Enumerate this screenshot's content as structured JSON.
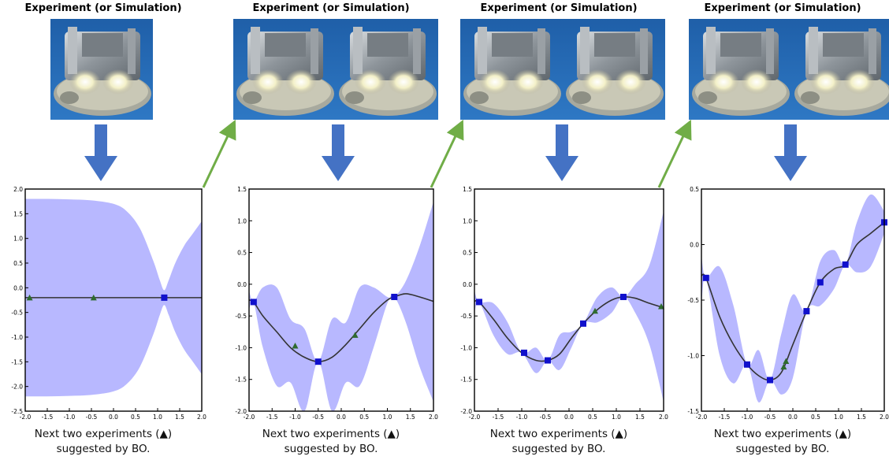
{
  "stages": [
    {
      "heading": "Experiment (or Simulation)",
      "caption_line1": "Next two experiments (▲)",
      "caption_line2": "suggested by BO.",
      "images": 1,
      "chart_data": {
        "type": "line",
        "xlim": [
          -2.0,
          2.0
        ],
        "ylim": [
          -2.5,
          2.0
        ],
        "xticks": [
          "-2.0",
          "-1.5",
          "-1.0",
          "-0.5",
          "0.0",
          "0.5",
          "1.0",
          "1.5",
          "2.0"
        ],
        "yticks": [
          "2.0",
          "1.5",
          "1.0",
          "0.5",
          "0.0",
          "-0.5",
          "-1.0",
          "-1.5",
          "-2.0",
          "-2.5"
        ],
        "mean": {
          "x": [
            -2.0,
            -1.5,
            -1.0,
            -0.5,
            0.0,
            0.5,
            1.0,
            1.5,
            2.0
          ],
          "y": [
            -0.2,
            -0.2,
            -0.2,
            -0.2,
            -0.2,
            -0.2,
            -0.2,
            -0.2,
            -0.2
          ]
        },
        "band": {
          "x": [
            -2.0,
            -1.5,
            -1.0,
            -0.5,
            0.0,
            0.3,
            0.6,
            0.9,
            1.05,
            1.15,
            1.25,
            1.4,
            1.6,
            1.8,
            2.0
          ],
          "upper": [
            1.8,
            1.8,
            1.79,
            1.77,
            1.7,
            1.55,
            1.2,
            0.55,
            0.15,
            -0.05,
            0.15,
            0.5,
            0.85,
            1.1,
            1.35
          ],
          "lower": [
            -2.2,
            -2.2,
            -2.19,
            -2.17,
            -2.1,
            -1.95,
            -1.6,
            -0.95,
            -0.55,
            -0.35,
            -0.55,
            -0.9,
            -1.25,
            -1.5,
            -1.75
          ]
        },
        "observed": {
          "x": [
            1.15
          ],
          "y": [
            -0.2
          ]
        },
        "suggested": {
          "x": [
            -1.9,
            -0.45
          ],
          "y": [
            -0.2,
            -0.2
          ]
        }
      }
    },
    {
      "heading": "Experiment (or Simulation)",
      "caption_line1": "Next two experiments (▲)",
      "caption_line2": "suggested by BO.",
      "images": 2,
      "chart_data": {
        "type": "line",
        "xlim": [
          -2.0,
          2.0
        ],
        "ylim": [
          -2.0,
          1.5
        ],
        "xticks": [
          "-2.0",
          "-1.5",
          "-1.0",
          "-0.5",
          "0.0",
          "0.5",
          "1.0",
          "1.5",
          "2.0"
        ],
        "yticks": [
          "1.5",
          "1.0",
          "0.5",
          "0.0",
          "-0.5",
          "-1.0",
          "-1.5",
          "-2.0"
        ],
        "mean": {
          "x": [
            -2.0,
            -1.9,
            -1.7,
            -1.4,
            -1.1,
            -0.8,
            -0.5,
            -0.2,
            0.1,
            0.4,
            0.7,
            1.0,
            1.15,
            1.4,
            1.7,
            2.0
          ],
          "y": [
            -0.25,
            -0.28,
            -0.5,
            -0.75,
            -1.0,
            -1.15,
            -1.22,
            -1.15,
            -0.95,
            -0.7,
            -0.45,
            -0.25,
            -0.2,
            -0.15,
            -0.2,
            -0.27
          ]
        },
        "band": {
          "x": [
            -2.0,
            -1.9,
            -1.7,
            -1.4,
            -1.1,
            -0.8,
            -0.5,
            -0.2,
            0.1,
            0.4,
            0.7,
            1.0,
            1.15,
            1.4,
            1.7,
            2.0
          ],
          "upper": [
            -0.1,
            -0.28,
            -0.05,
            -0.05,
            -0.55,
            -0.7,
            -1.22,
            -0.55,
            -0.6,
            -0.05,
            -0.05,
            -0.2,
            -0.2,
            0.05,
            0.6,
            1.3
          ],
          "lower": [
            -0.4,
            -0.28,
            -1.0,
            -1.6,
            -1.55,
            -2.0,
            -1.22,
            -2.0,
            -1.55,
            -1.6,
            -1.0,
            -0.3,
            -0.2,
            -0.6,
            -1.3,
            -1.85
          ]
        },
        "observed": {
          "x": [
            -1.9,
            -0.5,
            1.15
          ],
          "y": [
            -0.28,
            -1.22,
            -0.2
          ]
        },
        "suggested": {
          "x": [
            -1.0,
            0.3
          ],
          "y": [
            -0.97,
            -0.8
          ]
        }
      }
    },
    {
      "heading": "Experiment (or Simulation)",
      "caption_line1": "Next two experiments (▲)",
      "caption_line2": "suggested by BO.",
      "images": 2,
      "chart_data": {
        "type": "line",
        "xlim": [
          -2.0,
          2.0
        ],
        "ylim": [
          -2.0,
          1.5
        ],
        "xticks": [
          "-2.0",
          "-1.5",
          "-1.0",
          "-0.5",
          "0.0",
          "0.5",
          "1.0",
          "1.5",
          "2.0"
        ],
        "yticks": [
          "1.5",
          "1.0",
          "0.5",
          "0.0",
          "-0.5",
          "-1.0",
          "-1.5",
          "-2.0"
        ],
        "mean": {
          "x": [
            -2.0,
            -1.9,
            -1.6,
            -1.3,
            -1.0,
            -0.7,
            -0.45,
            -0.2,
            0.05,
            0.3,
            0.6,
            0.9,
            1.15,
            1.4,
            1.7,
            2.0
          ],
          "y": [
            -0.27,
            -0.28,
            -0.55,
            -0.85,
            -1.08,
            -1.2,
            -1.2,
            -1.1,
            -0.85,
            -0.62,
            -0.4,
            -0.25,
            -0.2,
            -0.22,
            -0.3,
            -0.37
          ]
        },
        "band": {
          "x": [
            -2.0,
            -1.9,
            -1.6,
            -1.3,
            -1.0,
            -0.7,
            -0.45,
            -0.2,
            0.05,
            0.3,
            0.6,
            0.9,
            1.15,
            1.4,
            1.7,
            2.0
          ],
          "upper": [
            -0.1,
            -0.28,
            -0.3,
            -0.6,
            -1.08,
            -1.0,
            -1.2,
            -0.8,
            -0.75,
            -0.62,
            -0.2,
            -0.05,
            -0.2,
            0.0,
            0.3,
            1.15
          ],
          "lower": [
            -0.45,
            -0.28,
            -0.8,
            -1.1,
            -1.08,
            -1.4,
            -1.2,
            -1.35,
            -1.0,
            -0.62,
            -0.6,
            -0.45,
            -0.2,
            -0.45,
            -0.95,
            -1.85
          ]
        },
        "observed": {
          "x": [
            -1.9,
            -0.95,
            -0.45,
            0.3,
            1.15
          ],
          "y": [
            -0.28,
            -1.08,
            -1.2,
            -0.62,
            -0.2
          ]
        },
        "suggested": {
          "x": [
            0.55,
            1.95
          ],
          "y": [
            -0.42,
            -0.35
          ]
        }
      }
    },
    {
      "heading": "Experiment (or Simulation)",
      "caption_line1": "Next two experiments (▲)",
      "caption_line2": "suggested by BO.",
      "images": 2,
      "chart_data": {
        "type": "line",
        "xlim": [
          -2.0,
          2.0
        ],
        "ylim": [
          -1.5,
          0.5
        ],
        "xticks": [
          "-2.0",
          "-1.5",
          "-1.0",
          "-0.5",
          "0.0",
          "0.5",
          "1.0",
          "1.5",
          "2.0"
        ],
        "yticks": [
          "0.5",
          "0.0",
          "-0.5",
          "-1.0",
          "-1.5"
        ],
        "mean": {
          "x": [
            -2.0,
            -1.9,
            -1.6,
            -1.3,
            -1.0,
            -0.75,
            -0.5,
            -0.25,
            0.0,
            0.3,
            0.6,
            0.9,
            1.15,
            1.4,
            1.7,
            2.0
          ],
          "y": [
            -0.28,
            -0.3,
            -0.65,
            -0.9,
            -1.08,
            -1.18,
            -1.22,
            -1.15,
            -0.9,
            -0.6,
            -0.34,
            -0.22,
            -0.18,
            0.0,
            0.1,
            0.2
          ]
        },
        "band": {
          "x": [
            -2.0,
            -1.9,
            -1.6,
            -1.3,
            -1.0,
            -0.75,
            -0.5,
            -0.25,
            0.0,
            0.3,
            0.6,
            0.9,
            1.15,
            1.4,
            1.7,
            2.0
          ],
          "upper": [
            -0.1,
            -0.3,
            -0.2,
            -0.55,
            -1.08,
            -0.95,
            -1.22,
            -0.8,
            -0.45,
            -0.6,
            -0.15,
            -0.05,
            -0.18,
            0.2,
            0.45,
            0.3
          ],
          "lower": [
            -0.55,
            -0.3,
            -1.0,
            -1.25,
            -1.08,
            -1.42,
            -1.22,
            -1.35,
            -1.2,
            -0.6,
            -0.55,
            -0.4,
            -0.18,
            -0.25,
            -0.2,
            0.1
          ]
        },
        "observed": {
          "x": [
            -1.9,
            -1.0,
            -0.5,
            0.3,
            0.6,
            1.15,
            2.0
          ],
          "y": [
            -0.3,
            -1.08,
            -1.22,
            -0.6,
            -0.34,
            -0.18,
            0.2
          ]
        },
        "suggested": {
          "x": [
            -0.2,
            -0.15
          ],
          "y": [
            -1.1,
            -1.05
          ]
        }
      }
    }
  ],
  "colors": {
    "band": "#b8b8ff",
    "mean": "#333333",
    "observed": "#1010cc",
    "suggested": "#2f6b2f",
    "down_arrow": "#4472c4",
    "green_arrow": "#70ad47"
  },
  "icons": {
    "photo": "3d-printed-metal-part-photo",
    "down_arrow": "down-arrow-icon",
    "diagonal_arrow": "next-iteration-arrow-icon"
  }
}
